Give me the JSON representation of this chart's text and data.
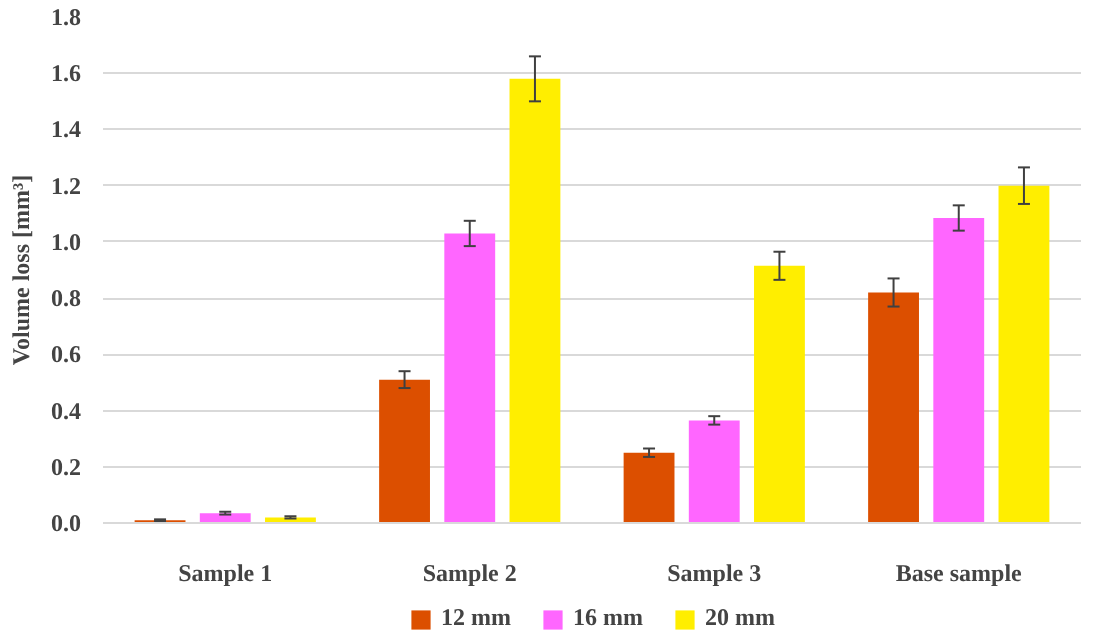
{
  "chart_data": {
    "type": "bar",
    "ylabel": "Volume loss [mm³]",
    "categories": [
      "Sample 1",
      "Sample 2",
      "Sample 3",
      "Base sample"
    ],
    "series": [
      {
        "name": "12 mm",
        "color": "#dc4f00",
        "values": [
          0.01,
          0.51,
          0.25,
          0.82
        ],
        "errors": [
          0.003,
          0.03,
          0.015,
          0.05
        ]
      },
      {
        "name": "16 mm",
        "color": "#ff66ff",
        "values": [
          0.035,
          1.03,
          0.365,
          1.085
        ],
        "errors": [
          0.005,
          0.045,
          0.015,
          0.045
        ]
      },
      {
        "name": "20 mm",
        "color": "#ffee00",
        "values": [
          0.02,
          1.58,
          0.915,
          1.2
        ],
        "errors": [
          0.004,
          0.08,
          0.05,
          0.065
        ]
      }
    ],
    "ylim": [
      0,
      1.8
    ],
    "yticks": [
      {
        "value": 0,
        "label": "0.0"
      },
      {
        "value": 0.2,
        "label": "0.2"
      },
      {
        "value": 0.4,
        "label": "0.4"
      },
      {
        "value": 0.6,
        "label": "0.6"
      },
      {
        "value": 0.8,
        "label": "0.8"
      },
      {
        "value": 1.0,
        "label": "1.0"
      },
      {
        "value": 1.2,
        "label": "1.2"
      },
      {
        "value": 1.4,
        "label": "1.4"
      },
      {
        "value": 1.6,
        "label": "1.6"
      },
      {
        "value": 1.8,
        "label": "1.8"
      }
    ],
    "grid": "y",
    "legend": "bottom"
  }
}
